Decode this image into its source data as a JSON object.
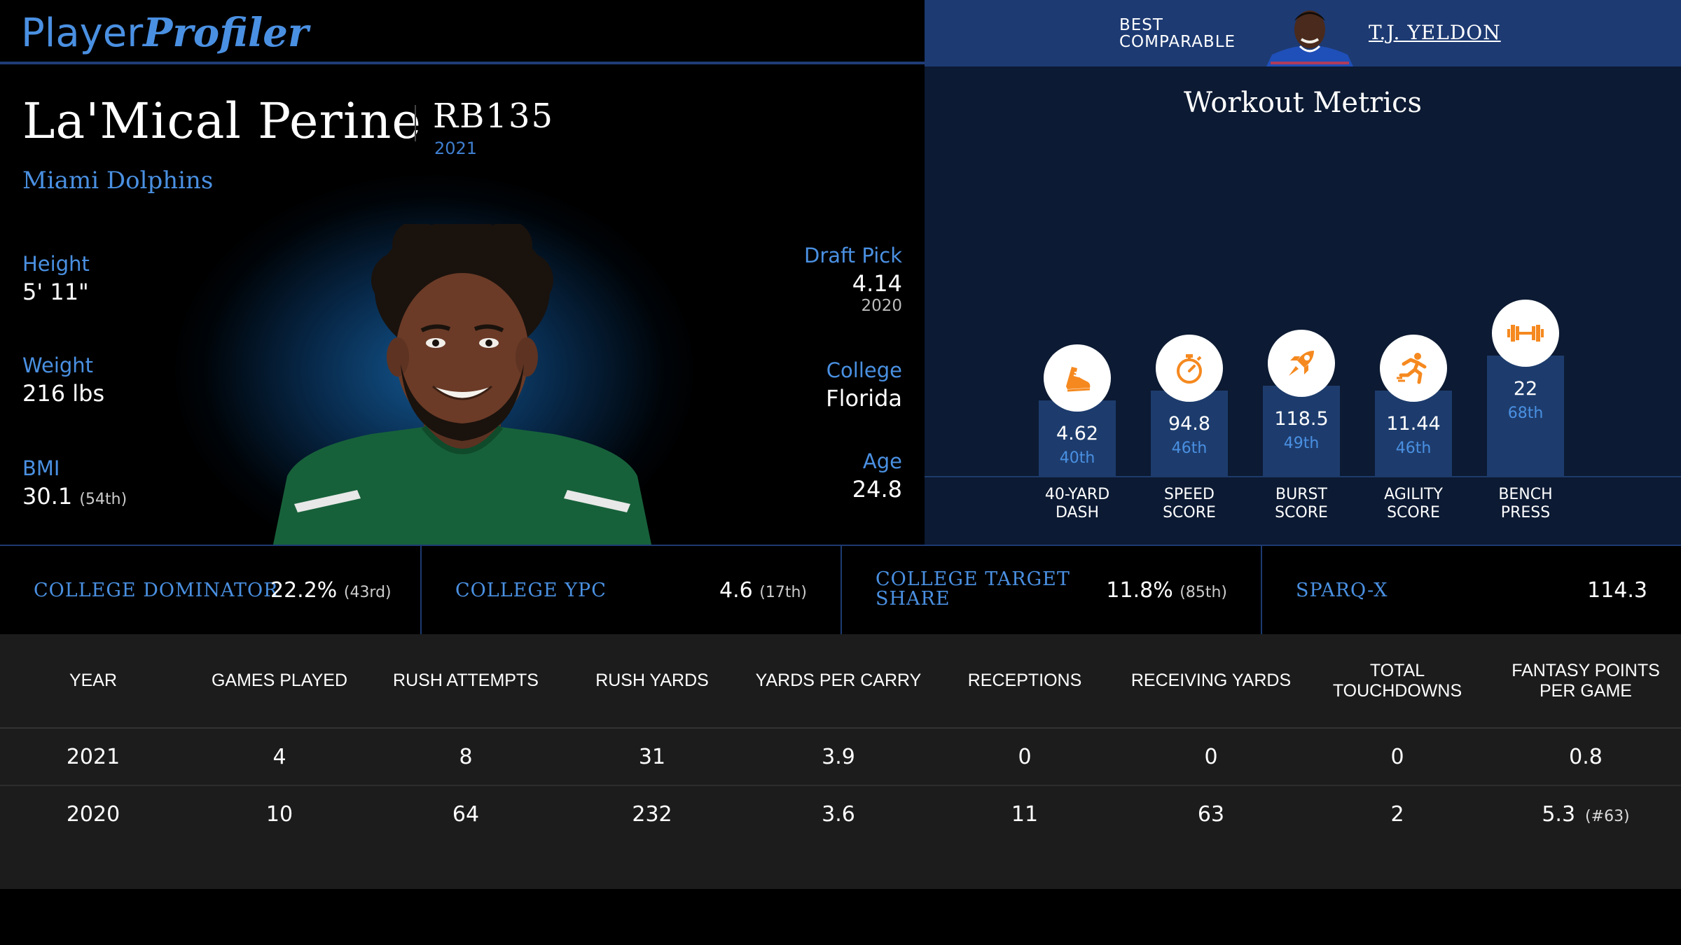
{
  "brand": {
    "part1": "Player",
    "part2": "Profiler"
  },
  "player": {
    "name": "La'Mical Perine",
    "position_rank": "RB135",
    "rank_year": "2021",
    "team": "Miami Dolphins"
  },
  "bio": {
    "height": {
      "label": "Height",
      "value": "5' 11\""
    },
    "weight": {
      "label": "Weight",
      "value": "216 lbs"
    },
    "bmi": {
      "label": "BMI",
      "value": "30.1",
      "rank": "(54th)"
    },
    "draft_pick": {
      "label": "Draft Pick",
      "value": "4.14",
      "year": "2020"
    },
    "college": {
      "label": "College",
      "value": "Florida"
    },
    "age": {
      "label": "Age",
      "value": "24.8"
    }
  },
  "comparable": {
    "label_line1": "BEST",
    "label_line2": "COMPARABLE",
    "name": "T.J. YELDON"
  },
  "workout": {
    "title": "Workout Metrics",
    "metrics": [
      {
        "value": "4.62",
        "percentile": "40th",
        "percentile_value": 40,
        "label_line1": "40-YARD",
        "label_line2": "DASH",
        "icon": "running-shoe-icon"
      },
      {
        "value": "94.8",
        "percentile": "46th",
        "percentile_value": 46,
        "label_line1": "SPEED",
        "label_line2": "SCORE",
        "icon": "stopwatch-icon"
      },
      {
        "value": "118.5",
        "percentile": "49th",
        "percentile_value": 49,
        "label_line1": "BURST",
        "label_line2": "SCORE",
        "icon": "rocket-icon"
      },
      {
        "value": "11.44",
        "percentile": "46th",
        "percentile_value": 46,
        "label_line1": "AGILITY",
        "label_line2": "SCORE",
        "icon": "agility-runner-icon"
      },
      {
        "value": "22",
        "percentile": "68th",
        "percentile_value": 68,
        "label_line1": "BENCH",
        "label_line2": "PRESS",
        "icon": "dumbbell-icon"
      }
    ]
  },
  "college_metrics": [
    {
      "label_line1": "COLLEGE DOMINATOR",
      "label_line2": "",
      "value": "22.2%",
      "rank": "(43rd)"
    },
    {
      "label_line1": "COLLEGE YPC",
      "label_line2": "",
      "value": "4.6",
      "rank": "(17th)"
    },
    {
      "label_line1": "COLLEGE TARGET",
      "label_line2": "SHARE",
      "value": "11.8%",
      "rank": "(85th)"
    },
    {
      "label_line1": "SPARQ-X",
      "label_line2": "",
      "value": "114.3",
      "rank": ""
    }
  ],
  "stats_table": {
    "headers": [
      "YEAR",
      "GAMES PLAYED",
      "RUSH ATTEMPTS",
      "RUSH YARDS",
      "YARDS PER CARRY",
      "RECEPTIONS",
      "RECEIVING YARDS",
      "TOTAL TOUCHDOWNS",
      "FANTASY POINTS PER GAME"
    ],
    "rows": [
      {
        "cells": [
          "2021",
          "4",
          "8",
          "31",
          "3.9",
          "0",
          "0",
          "0",
          "0.8"
        ],
        "fp_rank": ""
      },
      {
        "cells": [
          "2020",
          "10",
          "64",
          "232",
          "3.6",
          "11",
          "63",
          "2",
          "5.3"
        ],
        "fp_rank": "(#63)"
      }
    ]
  },
  "colors": {
    "accent_blue": "#4a90e2",
    "header_navy": "#1d3a72",
    "panel_navy": "#0c1a33",
    "bar_blue": "#1d3c6d",
    "icon_orange": "#f5891f",
    "jersey_green": "#17613a"
  }
}
